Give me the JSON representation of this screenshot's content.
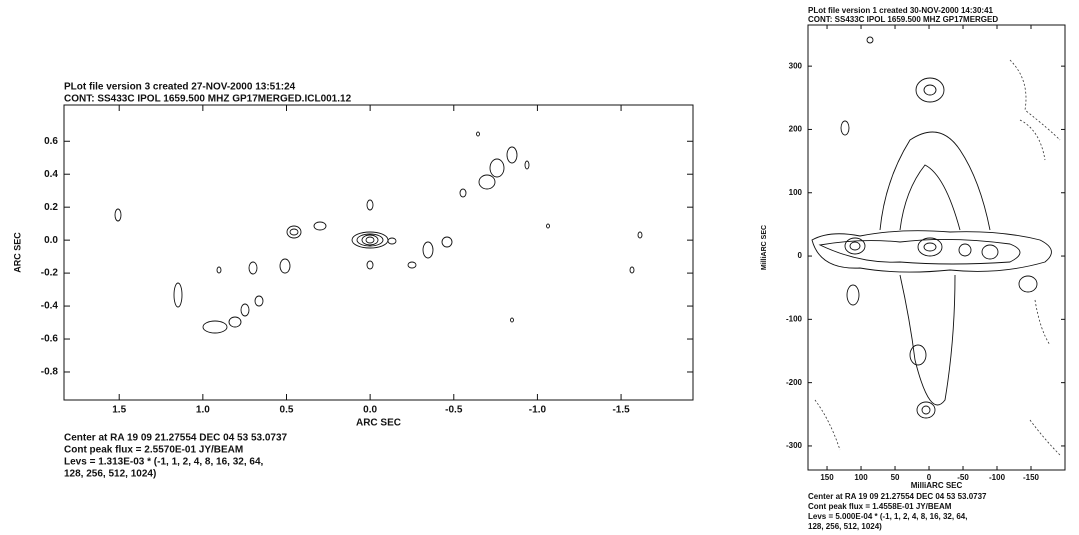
{
  "chart_data": [
    {
      "type": "contour",
      "title": [
        "PLot file version 3  created 27-NOV-2000 13:51:24",
        "CONT: SS433C  IPOL  1659.500 MHZ  GP17MERGED.ICL001.12"
      ],
      "xlabel": "ARC SEC",
      "ylabel": "ARC SEC",
      "xlim": [
        1.83,
        -1.93
      ],
      "ylim": [
        -0.97,
        0.82
      ],
      "xticks": [
        1.5,
        {
          "value": 1,
          "label": "1.0"
        },
        0.5,
        {
          "value": 0,
          "label": "0.0"
        },
        -0.5,
        {
          "value": -1,
          "label": "-1.0"
        },
        -1.5
      ],
      "yticks": [
        0.6,
        0.4,
        0.2,
        {
          "value": 0,
          "label": "0.0"
        },
        -0.2,
        -0.4,
        -0.6,
        -0.8
      ],
      "footer": [
        "Center at RA 19 09 21.27554  DEC 04 53 53.0737",
        "Cont peak flux =  2.5570E-01 JY/BEAM",
        "Levs = 1.313E-03 * (-1, 1, 2, 4, 8, 16, 32, 64,",
        "128, 256, 512, 1024)"
      ]
    },
    {
      "type": "contour",
      "title": [
        "PLot file version 1  created 30-NOV-2000 14:30:41",
        "CONT: SS433C  IPOL  1659.500 MHZ  GP17MERGED"
      ],
      "xlabel": "MilliARC SEC",
      "ylabel": "MilliARC SEC",
      "xlim": [
        178,
        -200
      ],
      "ylim": [
        -338,
        365
      ],
      "xticks": [
        150,
        100,
        50,
        0,
        -50,
        -100,
        -150
      ],
      "yticks": [
        300,
        200,
        100,
        0,
        -100,
        -200,
        -300
      ],
      "footer": [
        "Center at RA 19 09 21.27554  DEC 04 53 53.0737",
        "Cont peak flux =  1.4558E-01 JY/BEAM",
        "Levs = 5.000E-04 * (-1, 1, 2, 4, 8, 16, 32, 64,",
        "128, 256, 512, 1024)"
      ]
    }
  ]
}
